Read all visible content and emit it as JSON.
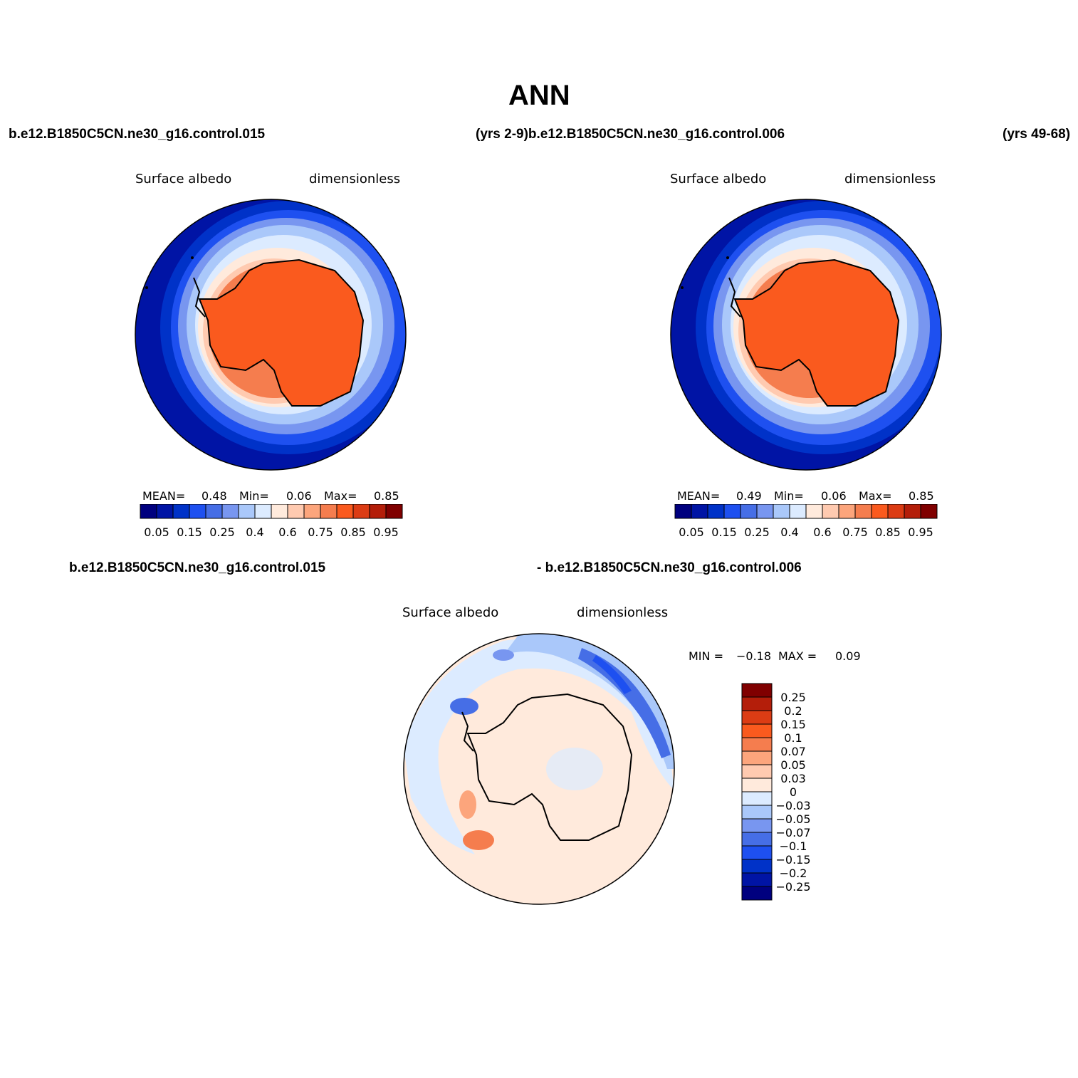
{
  "title": "ANN",
  "top_left_case": "b.e12.B1850C5CN.ne30_g16.control.015",
  "top_mid_text": "(yrs 2-9)b.e12.B1850C5CN.ne30_g16.control.006",
  "top_right_text": "(yrs 49-68)",
  "bottom_case_left": "b.e12.B1850C5CN.ne30_g16.control.015",
  "bottom_case_right": "- b.e12.B1850C5CN.ne30_g16.control.006",
  "panels": [
    {
      "var_label": "Surface albedo",
      "units_label": "dimensionless",
      "stats": {
        "mean_label": "MEAN=",
        "mean": "0.48",
        "min_label": "Min=",
        "min": "0.06",
        "max_label": "Max=",
        "max": "0.85"
      },
      "colorbar": {
        "colors": [
          "#00007f",
          "#0014a5",
          "#0032c8",
          "#1e50f0",
          "#466ee6",
          "#7896f0",
          "#aac8fa",
          "#dcebff",
          "#ffeadc",
          "#ffcab0",
          "#fca57c",
          "#f57d4e",
          "#fa5a1e",
          "#dc3c14",
          "#b41e0a",
          "#800000"
        ],
        "labels": [
          "0.05",
          "0.15",
          "0.25",
          "0.4",
          "0.6",
          "0.75",
          "0.85",
          "0.95"
        ]
      }
    },
    {
      "var_label": "Surface albedo",
      "units_label": "dimensionless",
      "stats": {
        "mean_label": "MEAN=",
        "mean": "0.49",
        "min_label": "Min=",
        "min": "0.06",
        "max_label": "Max=",
        "max": "0.85"
      },
      "colorbar": {
        "colors": [
          "#00007f",
          "#0014a5",
          "#0032c8",
          "#1e50f0",
          "#466ee6",
          "#7896f0",
          "#aac8fa",
          "#dcebff",
          "#ffeadc",
          "#ffcab0",
          "#fca57c",
          "#f57d4e",
          "#fa5a1e",
          "#dc3c14",
          "#b41e0a",
          "#800000"
        ],
        "labels": [
          "0.05",
          "0.15",
          "0.25",
          "0.4",
          "0.6",
          "0.75",
          "0.85",
          "0.95"
        ]
      }
    }
  ],
  "diff_panel": {
    "var_label": "Surface albedo",
    "units_label": "dimensionless",
    "stats": {
      "min_label": "MIN =",
      "min": "−0.18",
      "max_label": "MAX =",
      "max": "0.09"
    },
    "colorbar": {
      "colors": [
        "#800000",
        "#b41e0a",
        "#dc3c14",
        "#fa5a1e",
        "#f57d4e",
        "#fca57c",
        "#ffcab0",
        "#ffeadc",
        "#dcebff",
        "#aac8fa",
        "#7896f0",
        "#466ee6",
        "#1e50f0",
        "#0032c8",
        "#0014a5",
        "#00007f"
      ],
      "labels": [
        "0.25",
        "0.2",
        "0.15",
        "0.1",
        "0.07",
        "0.05",
        "0.03",
        "0",
        "−0.03",
        "−0.05",
        "−0.07",
        "−0.1",
        "−0.15",
        "−0.2",
        "−0.25"
      ]
    }
  },
  "colors": {
    "ocean_low": "#0014a5",
    "ice_high": "#fa5a1e",
    "diff_background": "#ffeadc",
    "diff_negative": "#dcebff"
  }
}
